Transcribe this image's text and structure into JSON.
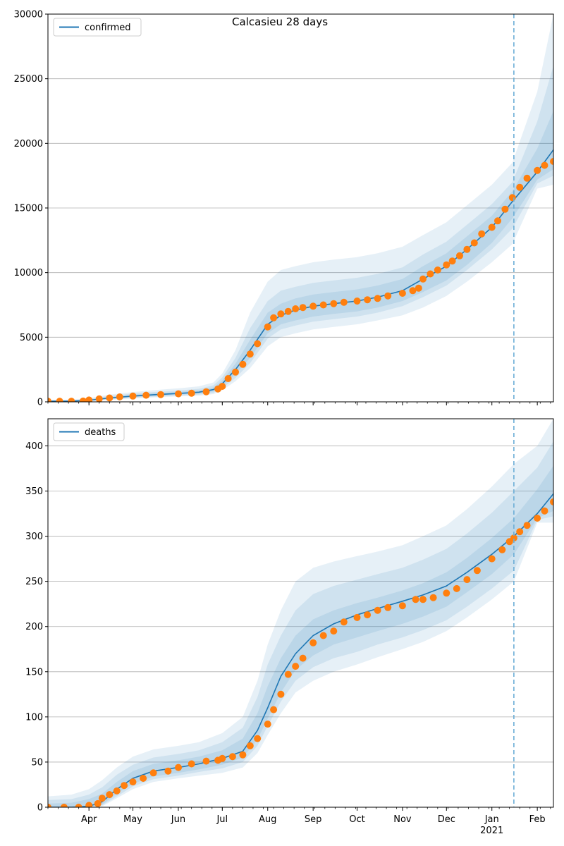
{
  "figure": {
    "title": "Calcasieu 28 days"
  },
  "colors": {
    "fit_line": "#1f77b4",
    "observed_points": "#ff7f0e",
    "band": "#1f77b4",
    "grid": "#b0b0b0",
    "forecast_line": "#6baed6"
  },
  "chart_data": [
    {
      "type": "line",
      "legend": {
        "label": "confirmed",
        "position": "top-left"
      },
      "x_range": [
        "2020-03-04",
        "2021-02-12"
      ],
      "ylim": [
        0,
        30000
      ],
      "yticks": [
        0,
        5000,
        10000,
        15000,
        20000,
        25000,
        30000
      ],
      "grid": "y",
      "forecast_start": "2021-01-16",
      "fit": {
        "x": [
          "2020-03-04",
          "2020-03-20",
          "2020-04-01",
          "2020-04-15",
          "2020-05-01",
          "2020-05-15",
          "2020-06-01",
          "2020-06-15",
          "2020-06-25",
          "2020-07-01",
          "2020-07-10",
          "2020-07-20",
          "2020-08-01",
          "2020-08-10",
          "2020-08-20",
          "2020-09-01",
          "2020-09-15",
          "2020-10-01",
          "2020-10-15",
          "2020-11-01",
          "2020-11-15",
          "2020-12-01",
          "2020-12-15",
          "2021-01-01",
          "2021-01-15",
          "2021-02-01",
          "2021-02-12"
        ],
        "y": [
          50,
          60,
          120,
          300,
          450,
          550,
          650,
          750,
          950,
          1400,
          2500,
          4000,
          6000,
          6700,
          7100,
          7400,
          7600,
          7800,
          8100,
          8600,
          9500,
          10500,
          11800,
          13500,
          15500,
          17800,
          19500
        ]
      },
      "bands": [
        {
          "upper": [
            150,
            170,
            280,
            560,
            760,
            900,
            1050,
            1200,
            1500,
            2200,
            4000,
            6900,
            9300,
            10200,
            10500,
            10800,
            11000,
            11200,
            11500,
            12000,
            12900,
            13900,
            15200,
            16800,
            18500,
            24000,
            30000
          ],
          "lower": [
            20,
            25,
            50,
            150,
            260,
            340,
            420,
            480,
            600,
            900,
            1600,
            2600,
            4300,
            5000,
            5300,
            5600,
            5800,
            6000,
            6300,
            6700,
            7300,
            8200,
            9300,
            10800,
            12200,
            16500,
            16800
          ]
        },
        {
          "upper": [
            110,
            125,
            220,
            460,
            640,
            760,
            880,
            1010,
            1280,
            1900,
            3400,
            5700,
            7800,
            8600,
            8900,
            9200,
            9400,
            9600,
            9900,
            10400,
            11400,
            12400,
            13700,
            15300,
            17000,
            21700,
            26000
          ],
          "lower": [
            30,
            36,
            70,
            190,
            310,
            400,
            490,
            560,
            700,
            1050,
            1850,
            3000,
            4900,
            5600,
            5900,
            6200,
            6400,
            6600,
            6900,
            7400,
            8100,
            9000,
            10200,
            11800,
            13400,
            16900,
            17500
          ]
        },
        {
          "upper": [
            80,
            90,
            170,
            380,
            550,
            660,
            770,
            890,
            1120,
            1650,
            2950,
            4800,
            6900,
            7600,
            8000,
            8300,
            8500,
            8700,
            9000,
            9500,
            10500,
            11500,
            12800,
            14400,
            16300,
            19600,
            22500
          ],
          "lower": [
            38,
            45,
            90,
            230,
            360,
            450,
            550,
            640,
            800,
            1200,
            2150,
            3400,
            5300,
            6000,
            6300,
            6600,
            6800,
            7000,
            7300,
            7800,
            8500,
            9400,
            10600,
            12300,
            14200,
            17200,
            18000
          ]
        }
      ],
      "observed": {
        "x": [
          "2020-03-04",
          "2020-03-12",
          "2020-03-20",
          "2020-03-28",
          "2020-04-01",
          "2020-04-08",
          "2020-04-15",
          "2020-04-22",
          "2020-05-01",
          "2020-05-10",
          "2020-05-20",
          "2020-06-01",
          "2020-06-10",
          "2020-06-20",
          "2020-06-28",
          "2020-07-01",
          "2020-07-05",
          "2020-07-10",
          "2020-07-15",
          "2020-07-20",
          "2020-07-25",
          "2020-08-01",
          "2020-08-05",
          "2020-08-10",
          "2020-08-15",
          "2020-08-20",
          "2020-08-25",
          "2020-09-01",
          "2020-09-08",
          "2020-09-15",
          "2020-09-22",
          "2020-10-01",
          "2020-10-08",
          "2020-10-15",
          "2020-10-22",
          "2020-11-01",
          "2020-11-08",
          "2020-11-12",
          "2020-11-15",
          "2020-11-20",
          "2020-11-25",
          "2020-12-01",
          "2020-12-05",
          "2020-12-10",
          "2020-12-15",
          "2020-12-20",
          "2020-12-25",
          "2021-01-01",
          "2021-01-05",
          "2021-01-10",
          "2021-01-15",
          "2021-01-20",
          "2021-01-25",
          "2021-02-01",
          "2021-02-06",
          "2021-02-12"
        ],
        "y": [
          50,
          50,
          50,
          60,
          140,
          230,
          300,
          380,
          450,
          510,
          560,
          620,
          670,
          780,
          1000,
          1200,
          1800,
          2300,
          2900,
          3700,
          4500,
          5800,
          6500,
          6800,
          7000,
          7200,
          7300,
          7400,
          7500,
          7600,
          7700,
          7800,
          7900,
          8000,
          8200,
          8400,
          8600,
          8800,
          9500,
          9900,
          10200,
          10600,
          10900,
          11300,
          11800,
          12300,
          13000,
          13500,
          14000,
          14900,
          15800,
          16600,
          17300,
          17900,
          18300,
          18600
        ]
      },
      "x_ticks": [
        {
          "date": "2020-04-01",
          "label": "Apr"
        },
        {
          "date": "2020-05-01",
          "label": "May"
        },
        {
          "date": "2020-06-01",
          "label": "Jun"
        },
        {
          "date": "2020-07-01",
          "label": "Jul"
        },
        {
          "date": "2020-08-01",
          "label": "Aug"
        },
        {
          "date": "2020-09-01",
          "label": "Sep"
        },
        {
          "date": "2020-10-01",
          "label": "Oct"
        },
        {
          "date": "2020-11-01",
          "label": "Nov"
        },
        {
          "date": "2020-12-01",
          "label": "Dec"
        },
        {
          "date": "2021-01-01",
          "label": "Jan"
        },
        {
          "date": "2021-02-01",
          "label": "Feb"
        }
      ],
      "x_tick_labels_shown": false
    },
    {
      "type": "line",
      "legend": {
        "label": "deaths",
        "position": "top-left"
      },
      "x_range": [
        "2020-03-04",
        "2021-02-12"
      ],
      "ylim": [
        0,
        430
      ],
      "yticks": [
        0,
        50,
        100,
        150,
        200,
        250,
        300,
        350,
        400
      ],
      "grid": "y",
      "forecast_start": "2021-01-16",
      "fit": {
        "x": [
          "2020-03-04",
          "2020-03-20",
          "2020-04-01",
          "2020-04-10",
          "2020-04-20",
          "2020-05-01",
          "2020-05-15",
          "2020-06-01",
          "2020-06-15",
          "2020-07-01",
          "2020-07-15",
          "2020-07-25",
          "2020-08-01",
          "2020-08-10",
          "2020-08-20",
          "2020-09-01",
          "2020-09-15",
          "2020-10-01",
          "2020-10-15",
          "2020-11-01",
          "2020-11-15",
          "2020-12-01",
          "2020-12-15",
          "2021-01-01",
          "2021-01-16",
          "2021-02-01",
          "2021-02-12"
        ],
        "y": [
          0,
          0,
          1,
          6,
          20,
          32,
          40,
          44,
          48,
          54,
          62,
          85,
          110,
          145,
          170,
          190,
          203,
          213,
          220,
          228,
          235,
          245,
          260,
          280,
          300,
          325,
          347
        ]
      },
      "bands": [
        {
          "upper": [
            12,
            14,
            20,
            30,
            44,
            56,
            64,
            68,
            72,
            82,
            100,
            140,
            180,
            218,
            250,
            265,
            272,
            278,
            283,
            290,
            300,
            312,
            330,
            355,
            380,
            400,
            430
          ],
          "lower": [
            0,
            0,
            0,
            1,
            10,
            20,
            28,
            32,
            35,
            38,
            44,
            60,
            80,
            104,
            127,
            140,
            150,
            158,
            166,
            175,
            183,
            195,
            210,
            230,
            250,
            315,
            315
          ]
        },
        {
          "upper": [
            8,
            9,
            14,
            22,
            36,
            47,
            55,
            59,
            63,
            72,
            88,
            122,
            158,
            190,
            218,
            236,
            245,
            252,
            258,
            265,
            274,
            286,
            303,
            326,
            350,
            376,
            405
          ],
          "lower": [
            0,
            0,
            0,
            2,
            12,
            23,
            31,
            35,
            39,
            43,
            50,
            68,
            90,
            117,
            140,
            155,
            165,
            172,
            180,
            188,
            196,
            207,
            222,
            242,
            262,
            318,
            322
          ]
        },
        {
          "upper": [
            4,
            5,
            9,
            15,
            28,
            40,
            48,
            52,
            56,
            63,
            76,
            104,
            134,
            165,
            190,
            208,
            218,
            226,
            232,
            240,
            248,
            260,
            276,
            298,
            320,
            352,
            378
          ],
          "lower": [
            0,
            0,
            0,
            3,
            15,
            26,
            34,
            38,
            42,
            47,
            55,
            75,
            98,
            127,
            152,
            168,
            180,
            188,
            195,
            203,
            211,
            222,
            238,
            258,
            280,
            320,
            328
          ]
        }
      ],
      "observed": {
        "x": [
          "2020-03-04",
          "2020-03-15",
          "2020-03-25",
          "2020-04-01",
          "2020-04-07",
          "2020-04-10",
          "2020-04-15",
          "2020-04-20",
          "2020-04-25",
          "2020-05-01",
          "2020-05-08",
          "2020-05-15",
          "2020-05-25",
          "2020-06-01",
          "2020-06-10",
          "2020-06-20",
          "2020-06-28",
          "2020-07-01",
          "2020-07-08",
          "2020-07-15",
          "2020-07-20",
          "2020-07-25",
          "2020-08-01",
          "2020-08-05",
          "2020-08-10",
          "2020-08-15",
          "2020-08-20",
          "2020-08-25",
          "2020-09-01",
          "2020-09-08",
          "2020-09-15",
          "2020-09-22",
          "2020-10-01",
          "2020-10-08",
          "2020-10-15",
          "2020-10-22",
          "2020-11-01",
          "2020-11-10",
          "2020-11-15",
          "2020-11-22",
          "2020-12-01",
          "2020-12-08",
          "2020-12-15",
          "2020-12-22",
          "2021-01-01",
          "2021-01-08",
          "2021-01-13",
          "2021-01-16",
          "2021-01-20",
          "2021-01-25",
          "2021-02-01",
          "2021-02-06",
          "2021-02-12"
        ],
        "y": [
          0,
          0,
          0,
          2,
          4,
          10,
          14,
          18,
          24,
          28,
          32,
          38,
          40,
          44,
          48,
          51,
          52,
          54,
          56,
          58,
          68,
          76,
          92,
          108,
          125,
          147,
          156,
          165,
          182,
          190,
          195,
          205,
          210,
          213,
          218,
          221,
          223,
          230,
          230,
          232,
          237,
          242,
          252,
          262,
          275,
          285,
          294,
          298,
          305,
          312,
          320,
          328,
          338
        ]
      },
      "x_ticks": [
        {
          "date": "2020-04-01",
          "label": "Apr"
        },
        {
          "date": "2020-05-01",
          "label": "May"
        },
        {
          "date": "2020-06-01",
          "label": "Jun"
        },
        {
          "date": "2020-07-01",
          "label": "Jul"
        },
        {
          "date": "2020-08-01",
          "label": "Aug"
        },
        {
          "date": "2020-09-01",
          "label": "Sep"
        },
        {
          "date": "2020-10-01",
          "label": "Oct"
        },
        {
          "date": "2020-11-01",
          "label": "Nov"
        },
        {
          "date": "2020-12-01",
          "label": "Dec"
        },
        {
          "date": "2021-01-01",
          "label": "Jan"
        },
        {
          "date": "2021-02-01",
          "label": "Feb"
        }
      ],
      "x_tick_labels_shown": true,
      "year_label": {
        "date": "2021-01-01",
        "label": "2021"
      }
    }
  ]
}
